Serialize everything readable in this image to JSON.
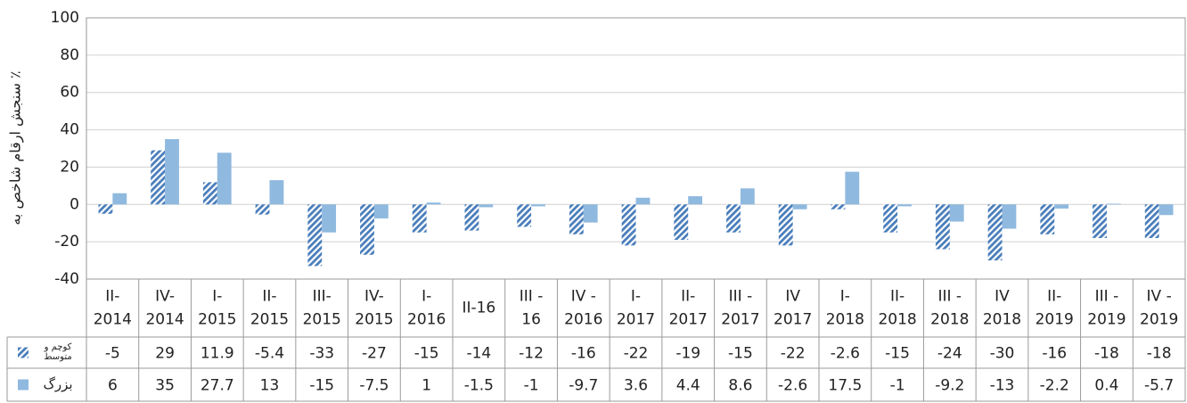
{
  "chart_data": {
    "type": "bar",
    "y_label": "سنجش ارقام شاخص به ٪",
    "categories": [
      [
        "II-",
        "2014"
      ],
      [
        "IV-",
        "2014"
      ],
      [
        "I-",
        "2015"
      ],
      [
        "II-",
        "2015"
      ],
      [
        "III-",
        "2015"
      ],
      [
        "IV-",
        "2015"
      ],
      [
        "I-",
        "2016"
      ],
      [
        "II-16"
      ],
      [
        "III -",
        "16"
      ],
      [
        "IV -",
        "2016"
      ],
      [
        "I-",
        "2017"
      ],
      [
        "II-",
        "2017"
      ],
      [
        "III -",
        "2017"
      ],
      [
        "IV",
        "2017"
      ],
      [
        "I-",
        "2018"
      ],
      [
        "II-",
        "2018"
      ],
      [
        "III -",
        "2018"
      ],
      [
        "IV",
        "2018"
      ],
      [
        "II-",
        "2019"
      ],
      [
        "III -",
        "2019"
      ],
      [
        "IV -",
        "2019"
      ]
    ],
    "series": [
      {
        "name": "کوچم و متوسط",
        "color": "#4a7ebb",
        "pattern": "hatch",
        "values": [
          -5,
          29,
          11.9,
          -5.4,
          -33,
          -27,
          -15,
          -14,
          -12,
          -16,
          -22,
          -19,
          -15,
          -22,
          -2.6,
          -15,
          -24,
          -30,
          -16,
          -18,
          -18
        ]
      },
      {
        "name": "بزرگ",
        "color": "#8fb9df",
        "pattern": "solid",
        "values": [
          6,
          35,
          27.7,
          13,
          -15,
          -7.5,
          1,
          -1.5,
          -1,
          -9.7,
          3.6,
          4.4,
          8.6,
          -2.6,
          17.5,
          -1,
          -9.2,
          -13,
          -2.2,
          0.4,
          -5.7
        ]
      }
    ],
    "ylim": [
      -40,
      100
    ],
    "yticks": [
      -40,
      -20,
      0,
      20,
      40,
      60,
      80,
      100
    ],
    "grid": true
  }
}
